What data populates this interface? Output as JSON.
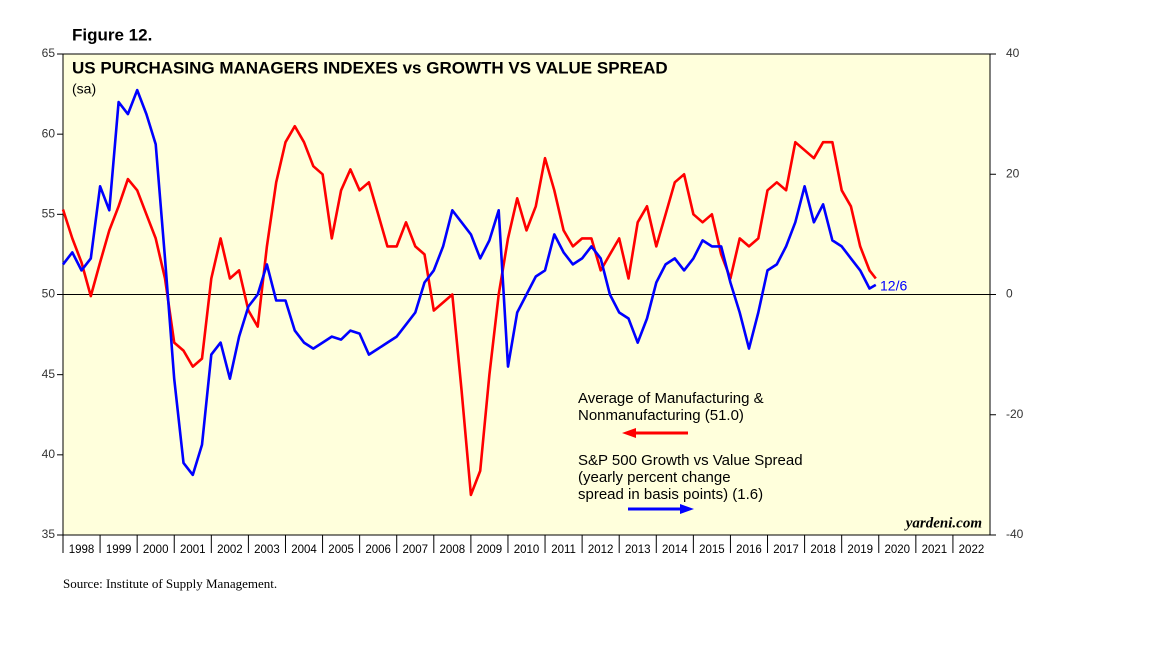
{
  "chart_data": {
    "type": "line",
    "figure_label": "Figure 12.",
    "title": "US PURCHASING MANAGERS INDEXES vs GROWTH VS VALUE SPREAD",
    "subtitle": "(sa)",
    "source": "Source: Institute of Supply Management.",
    "watermark": "yardeni.com",
    "annotation": "12/6",
    "xlim": [
      1998,
      2023
    ],
    "xticks": [
      1998,
      1999,
      2000,
      2001,
      2002,
      2003,
      2004,
      2005,
      2006,
      2007,
      2008,
      2009,
      2010,
      2011,
      2012,
      2013,
      2014,
      2015,
      2016,
      2017,
      2018,
      2019,
      2020,
      2021,
      2022
    ],
    "ylim": [
      35,
      65
    ],
    "yticks": [
      35,
      40,
      45,
      50,
      55,
      60,
      65
    ],
    "y2lim": [
      -40,
      40
    ],
    "y2ticks": [
      -40,
      -20,
      0,
      20,
      40
    ],
    "reference_line": {
      "axis": "y2",
      "value": 0
    },
    "x": [
      1998.0,
      1998.25,
      1998.5,
      1998.75,
      1999.0,
      1999.25,
      1999.5,
      1999.75,
      2000.0,
      2000.25,
      2000.5,
      2000.75,
      2001.0,
      2001.25,
      2001.5,
      2001.75,
      2002.0,
      2002.25,
      2002.5,
      2002.75,
      2003.0,
      2003.25,
      2003.5,
      2003.75,
      2004.0,
      2004.25,
      2004.5,
      2004.75,
      2005.0,
      2005.25,
      2005.5,
      2005.75,
      2006.0,
      2006.25,
      2006.5,
      2006.75,
      2007.0,
      2007.25,
      2007.5,
      2007.75,
      2008.0,
      2008.25,
      2008.5,
      2008.75,
      2009.0,
      2009.25,
      2009.5,
      2009.75,
      2010.0,
      2010.25,
      2010.5,
      2010.75,
      2011.0,
      2011.25,
      2011.5,
      2011.75,
      2012.0,
      2012.25,
      2012.5,
      2012.75,
      2013.0,
      2013.25,
      2013.5,
      2013.75,
      2014.0,
      2014.25,
      2014.5,
      2014.75,
      2015.0,
      2015.25,
      2015.5,
      2015.75,
      2016.0,
      2016.25,
      2016.5,
      2016.75,
      2017.0,
      2017.25,
      2017.5,
      2017.75,
      2018.0,
      2018.25,
      2018.5,
      2018.75,
      2019.0,
      2019.25,
      2019.5,
      2019.75,
      2019.92
    ],
    "series": [
      {
        "name": "Average of Manufacturing &\nNonmanufacturing (51.0)",
        "color": "#ff0000",
        "axis": "y",
        "values": [
          55.3,
          53.5,
          52,
          49.9,
          52,
          54,
          55.5,
          57.2,
          56.5,
          55,
          53.5,
          51,
          47,
          46.5,
          45.5,
          46,
          51,
          53.5,
          51,
          51.5,
          49,
          48,
          53,
          57,
          59.5,
          60.5,
          59.5,
          58,
          57.5,
          53.5,
          56.5,
          57.8,
          56.5,
          57,
          55,
          53,
          53,
          54.5,
          53,
          52.5,
          49,
          49.5,
          50,
          44,
          37.5,
          39,
          45,
          50,
          53.5,
          56,
          54,
          55.5,
          58.5,
          56.5,
          54,
          53,
          53.5,
          53.5,
          51.5,
          52.5,
          53.5,
          51,
          54.5,
          55.5,
          53,
          55,
          57,
          57.5,
          55,
          54.5,
          55,
          52.5,
          51,
          53.5,
          53,
          53.5,
          56.5,
          57,
          56.5,
          59.5,
          59,
          58.5,
          59.5,
          59.5,
          56.5,
          55.5,
          53,
          51.5,
          51.0
        ]
      },
      {
        "name": "S&P 500 Growth vs Value Spread\n(yearly percent change\nspread in basis points) (1.6)",
        "color": "#0000ff",
        "axis": "y2",
        "values": [
          5,
          7,
          4,
          6,
          18,
          14,
          32,
          30,
          34,
          30,
          25,
          6,
          -14,
          -28,
          -30,
          -25,
          -10,
          -8,
          -14,
          -7,
          -2,
          0,
          5,
          -1,
          -1,
          -6,
          -8,
          -9,
          -8,
          -7,
          -7.5,
          -6,
          -6.5,
          -10,
          -9,
          -8,
          -7,
          -5,
          -3,
          2,
          4,
          8,
          14,
          12,
          10,
          6,
          9,
          14,
          -12,
          -3,
          0,
          3,
          4,
          10,
          7,
          5,
          6,
          8,
          6,
          0,
          -3,
          -4,
          -8,
          -4,
          2,
          5,
          6,
          4,
          6,
          9,
          8,
          8,
          2,
          -3,
          -9,
          -3,
          4,
          5,
          8,
          12,
          18,
          12,
          15,
          9,
          8,
          6,
          4,
          1,
          1.6
        ]
      }
    ]
  }
}
